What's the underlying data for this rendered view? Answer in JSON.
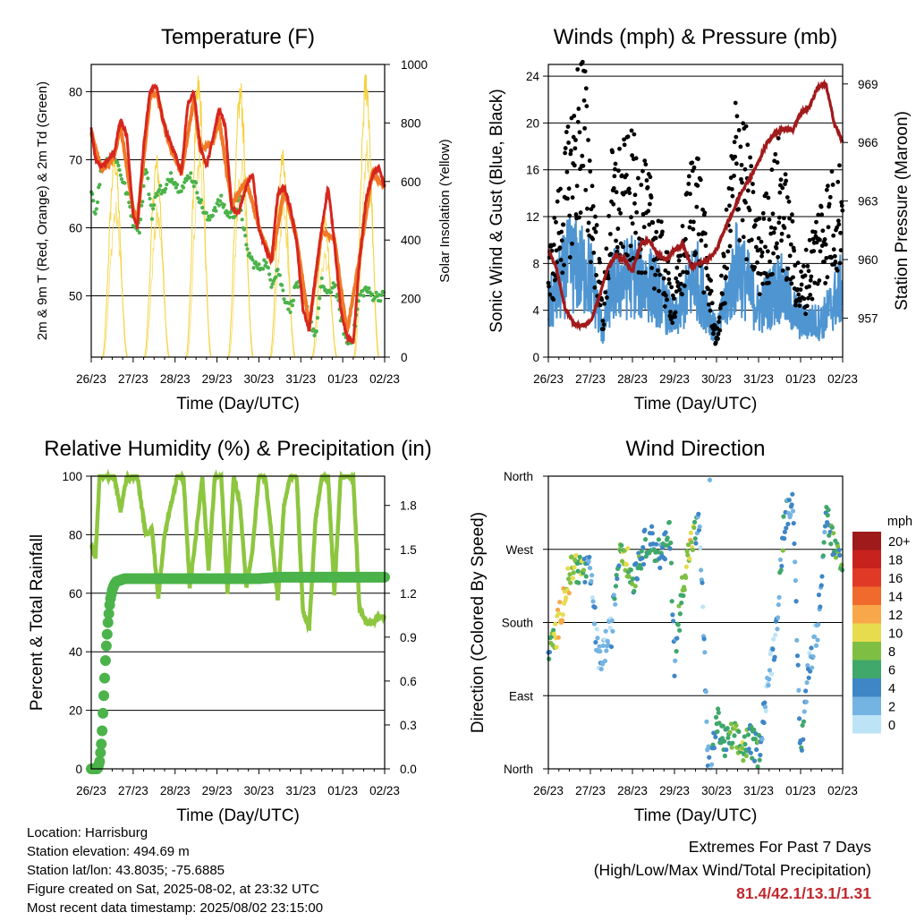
{
  "chart_data": [
    {
      "type": "line",
      "title": "Temperature (F)",
      "xlabel": "Time (Day/UTC)",
      "ylabel": "2m & 9m T (Red, Orange) & 2m Td (Green)",
      "y2label": "Solar Insolation (Yellow)",
      "x_ticks": [
        "26/23",
        "27/23",
        "28/23",
        "29/23",
        "30/23",
        "31/23",
        "01/23",
        "02/23"
      ],
      "ylim": [
        41,
        84
      ],
      "y_ticks": [
        50,
        60,
        70,
        80
      ],
      "y2lim": [
        0,
        1000
      ],
      "y2_ticks": [
        0,
        200,
        400,
        600,
        800,
        1000
      ],
      "grid": true,
      "series": [
        {
          "name": "2m T",
          "color": "#d7261e",
          "x": [
            0,
            0.1,
            0.25,
            0.4,
            0.55,
            0.7,
            0.85,
            1.0,
            1.1,
            1.25,
            1.4,
            1.55,
            1.7,
            1.85,
            2.0,
            2.15,
            2.3,
            2.45,
            2.6,
            2.75,
            2.9,
            3.05,
            3.2,
            3.35,
            3.5,
            3.7,
            3.85,
            4.0,
            4.15,
            4.3,
            4.45,
            4.6,
            4.75,
            4.9,
            5.05,
            5.2,
            5.35,
            5.5,
            5.65,
            5.8,
            5.95,
            6.1,
            6.25,
            6.4,
            6.55,
            6.7,
            6.85,
            7.0
          ],
          "values": [
            74.5,
            70,
            69,
            70,
            71,
            76,
            73.5,
            62,
            60,
            72,
            80,
            81,
            76,
            73,
            71,
            68,
            78,
            80,
            72,
            69,
            73,
            77.5,
            75,
            63,
            62,
            66,
            68,
            60,
            57,
            55,
            65,
            66,
            63,
            58,
            48,
            45,
            53,
            60,
            66,
            58,
            48,
            44,
            43,
            55,
            64,
            67.5,
            69,
            66
          ]
        },
        {
          "name": "9m T",
          "color": "#f07a28",
          "x": [
            0,
            0.25,
            0.55,
            0.7,
            1.0,
            1.1,
            1.4,
            1.55,
            1.85,
            2.15,
            2.45,
            2.6,
            2.9,
            3.05,
            3.35,
            3.7,
            4.0,
            4.3,
            4.6,
            4.9,
            5.2,
            5.5,
            5.8,
            6.1,
            6.4,
            6.7,
            7.0
          ],
          "values": [
            74,
            68.5,
            70.5,
            75,
            62.5,
            61,
            79,
            80,
            72.5,
            68,
            79,
            71.5,
            72.5,
            76,
            63.5,
            67,
            60,
            55,
            65.5,
            58.5,
            45.5,
            59.5,
            58.5,
            44.5,
            55.5,
            68,
            66
          ]
        },
        {
          "name": "2m Td",
          "color": "#4bb34a",
          "x": [
            0,
            0.1,
            0.25,
            0.4,
            0.55,
            0.7,
            0.85,
            1.0,
            1.15,
            1.3,
            1.45,
            1.6,
            1.75,
            1.9,
            2.05,
            2.2,
            2.35,
            2.5,
            2.65,
            2.8,
            2.95,
            3.1,
            3.25,
            3.4,
            3.55,
            3.7,
            3.85,
            4.0,
            4.15,
            4.3,
            4.45,
            4.6,
            4.75,
            4.9,
            5.05,
            5.2,
            5.35,
            5.5,
            5.65,
            5.8,
            5.95,
            6.1,
            6.25,
            6.4,
            6.55,
            6.7
          ],
          "values": [
            66,
            62,
            69,
            70,
            71,
            68,
            65,
            61,
            60,
            69,
            62,
            66,
            65,
            68,
            66,
            66,
            68,
            66,
            63,
            61,
            63,
            64,
            62,
            62,
            64,
            57,
            55,
            54,
            55,
            52,
            54,
            50,
            48,
            52,
            50,
            47,
            44,
            52,
            50,
            52,
            47,
            43,
            44,
            50,
            51,
            50
          ]
        }
      ],
      "insolation": {
        "name": "Solar Insolation",
        "color": "#f5d13c",
        "day_centers": [
          0.56,
          1.56,
          2.56,
          3.56,
          4.56,
          5.56,
          6.56
        ],
        "peaks": [
          720,
          700,
          980,
          960,
          720,
          500,
          1000
        ]
      }
    },
    {
      "type": "scatter",
      "title": "Winds (mph) & Pressure (mb)",
      "xlabel": "Time (Day/UTC)",
      "ylabel": "Sonic Wind & Gust (Blue, Black)",
      "y2label": "Station Pressure (Maroon)",
      "x_ticks": [
        "26/23",
        "27/23",
        "28/23",
        "29/23",
        "30/23",
        "31/23",
        "01/23",
        "02/23"
      ],
      "ylim": [
        0,
        25
      ],
      "y_ticks": [
        0,
        4,
        8,
        12,
        16,
        20,
        24
      ],
      "y2lim": [
        955,
        970
      ],
      "y2_ticks": [
        957,
        960,
        963,
        966,
        969
      ],
      "grid": true,
      "series": [
        {
          "name": "Sonic Wind",
          "color": "#4f95d1",
          "x": [
            0,
            0.5,
            1.0,
            1.3,
            1.5,
            2.0,
            2.5,
            3.0,
            3.5,
            4.0,
            4.5,
            5.0,
            5.5,
            6.0,
            6.5,
            7.0
          ],
          "values": [
            4,
            8,
            7,
            2,
            6,
            7,
            6,
            3,
            7,
            2,
            8,
            4,
            6,
            3,
            3,
            6
          ]
        },
        {
          "name": "Gust",
          "color": "#000000",
          "x": [
            0,
            0.5,
            0.8,
            1.0,
            1.3,
            1.5,
            2.0,
            2.5,
            3.0,
            3.5,
            4.0,
            4.5,
            5.0,
            5.5,
            6.0,
            6.5,
            7.0
          ],
          "values": [
            6,
            14,
            19,
            13,
            3,
            12,
            13,
            10,
            4,
            14,
            1,
            17,
            8,
            13,
            5,
            10,
            12
          ]
        },
        {
          "name": "Station Pressure",
          "color": "#a11a1c",
          "x": [
            0,
            0.2,
            0.4,
            0.6,
            0.8,
            1.0,
            1.2,
            1.4,
            1.6,
            1.8,
            2.0,
            2.2,
            2.4,
            2.6,
            2.8,
            3.0,
            3.2,
            3.4,
            3.6,
            3.8,
            4.0,
            4.2,
            4.4,
            4.6,
            4.8,
            5.0,
            5.2,
            5.4,
            5.6,
            5.8,
            6.0,
            6.2,
            6.4,
            6.6,
            6.8,
            7.0
          ],
          "values": [
            960.5,
            959.5,
            957.5,
            956.7,
            956.6,
            956.8,
            958,
            959.5,
            960.2,
            960,
            959.4,
            960.8,
            961,
            960.3,
            960,
            960.5,
            960.8,
            959.6,
            959.8,
            960,
            960.5,
            961.6,
            962.5,
            963.5,
            964.2,
            965,
            966,
            966.5,
            966.7,
            966.6,
            967.5,
            967.8,
            968.8,
            969,
            967,
            966
          ]
        }
      ]
    },
    {
      "type": "line",
      "title": "Relative Humidity (%) & Precipitation (in)",
      "xlabel": "Time (Day/UTC)",
      "ylabel": "Percent & Total Rainfall",
      "x_ticks": [
        "26/23",
        "27/23",
        "28/23",
        "29/23",
        "30/23",
        "31/23",
        "01/23",
        "02/23"
      ],
      "ylim": [
        0,
        100
      ],
      "y_ticks": [
        0,
        20,
        40,
        60,
        80,
        100
      ],
      "y2lim": [
        0,
        2.0
      ],
      "y2_ticks": [
        "0.0",
        "0.3",
        "0.6",
        "0.9",
        "1.2",
        "1.5",
        "1.8"
      ],
      "grid": true,
      "series": [
        {
          "name": "Relative Humidity",
          "color": "#8dc63f",
          "x": [
            0,
            0.1,
            0.2,
            0.3,
            0.4,
            0.55,
            0.7,
            0.85,
            0.95,
            1.1,
            1.3,
            1.45,
            1.6,
            1.75,
            1.9,
            2.05,
            2.2,
            2.35,
            2.5,
            2.65,
            2.8,
            2.95,
            3.1,
            3.25,
            3.4,
            3.55,
            3.7,
            3.85,
            4.0,
            4.15,
            4.3,
            4.45,
            4.6,
            4.75,
            4.9,
            5.05,
            5.2,
            5.35,
            5.5,
            5.65,
            5.8,
            5.95,
            6.1,
            6.25,
            6.4,
            6.55,
            6.7,
            6.85,
            7.0
          ],
          "values": [
            77,
            72,
            100,
            100,
            100,
            100,
            88,
            100,
            100,
            100,
            80,
            82,
            58,
            80,
            90,
            100,
            100,
            62,
            80,
            100,
            68,
            100,
            100,
            60,
            100,
            90,
            62,
            75,
            100,
            100,
            80,
            58,
            90,
            100,
            100,
            54,
            48,
            85,
            100,
            100,
            60,
            100,
            100,
            100,
            55,
            50,
            50,
            52,
            52
          ]
        },
        {
          "name": "Total Rainfall",
          "color": "#4bb34a",
          "x": [
            0,
            0.15,
            0.2,
            0.25,
            0.3,
            0.35,
            0.4,
            0.45,
            0.5,
            0.55,
            0.6,
            0.7,
            0.8,
            1.0,
            2.0,
            3.0,
            4.0,
            4.5,
            5.0,
            6.0,
            7.0
          ],
          "values": [
            0,
            0,
            0.05,
            0.2,
            0.5,
            0.8,
            1.0,
            1.15,
            1.22,
            1.26,
            1.28,
            1.29,
            1.3,
            1.3,
            1.3,
            1.3,
            1.3,
            1.31,
            1.31,
            1.31,
            1.31
          ]
        }
      ]
    },
    {
      "type": "scatter",
      "title": "Wind Direction",
      "xlabel": "Time (Day/UTC)",
      "ylabel": "Direction (Colored By Speed)",
      "x_ticks": [
        "26/23",
        "27/23",
        "28/23",
        "29/23",
        "30/23",
        "31/23",
        "01/23",
        "02/23"
      ],
      "y_ticks": [
        "North",
        "East",
        "South",
        "West",
        "North"
      ],
      "ylim": [
        0,
        360
      ],
      "grid": true,
      "legend": {
        "title": "mph",
        "placement": "right",
        "labels": [
          "20+",
          "18",
          "16",
          "14",
          "12",
          "10",
          "8",
          "6",
          "4",
          "2",
          "0"
        ],
        "colors": [
          "#9e1a1b",
          "#c8221e",
          "#e03a27",
          "#f06a2d",
          "#f8a84a",
          "#e6dc4e",
          "#7ebf43",
          "#3fa86a",
          "#3f86c6",
          "#74b4e2",
          "#bde4f6"
        ]
      },
      "series": [
        {
          "name": "Direction",
          "x": [
            0,
            0.2,
            0.4,
            0.6,
            0.8,
            1.0,
            1.2,
            1.5,
            1.7,
            1.8,
            2.0,
            2.2,
            2.4,
            2.7,
            2.9,
            3.0,
            3.2,
            3.4,
            3.6,
            3.8,
            3.9,
            4.0,
            4.2,
            4.4,
            4.6,
            4.8,
            5.0,
            5.2,
            5.4,
            5.6,
            5.8,
            6.0,
            6.2,
            6.4,
            6.6,
            6.8,
            7.0
          ],
          "values": [
            140,
            170,
            220,
            250,
            245,
            240,
            130,
            170,
            275,
            270,
            230,
            265,
            285,
            260,
            290,
            130,
            230,
            280,
            300,
            10,
            15,
            60,
            30,
            40,
            25,
            35,
            20,
            100,
            160,
            300,
            340,
            20,
            130,
            170,
            320,
            270,
            240
          ],
          "speeds": [
            4,
            10,
            11,
            8,
            7,
            3,
            2,
            2,
            6,
            9,
            6,
            5,
            5,
            4,
            6,
            3,
            8,
            10,
            1,
            2,
            3,
            6,
            5,
            7,
            8,
            5,
            6,
            1,
            2,
            6,
            2,
            5,
            3,
            2,
            4,
            6,
            7
          ]
        }
      ]
    }
  ],
  "info": {
    "location": "Location: Harrisburg",
    "elevation": "Station elevation: 494.69 m",
    "latlon": "Station lat/lon: 43.8035; -75.6885",
    "created": "Figure created on Sat, 2025-08-02, at 23:32 UTC",
    "recent": "Most recent data timestamp: 2025/08/02 23:15:00"
  },
  "extremes": {
    "title": "Extremes For Past 7 Days",
    "subtitle": "(High/Low/Max Wind/Total Precipitation)",
    "values": "81.4/42.1/13.1/1.31"
  }
}
